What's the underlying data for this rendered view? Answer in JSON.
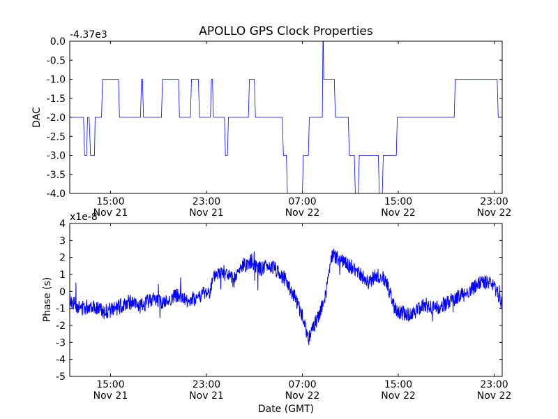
{
  "chart_data": [
    {
      "type": "line",
      "title": "APOLLO GPS Clock Properties",
      "ylabel": "DAC",
      "xlabel": "",
      "offset_label": "-4.37e3",
      "ylim": [
        -4.0,
        0.0
      ],
      "yticks": [
        "0.0",
        "-0.5",
        "-1.0",
        "-1.5",
        "-2.0",
        "-2.5",
        "-3.0",
        "-3.5",
        "-4.0"
      ],
      "xlim": [
        "2008-11-21 11:36",
        "2008-11-22 23:40"
      ],
      "xticks": [
        {
          "time": "2008-11-21 15:00",
          "line1": "15:00",
          "line2": "Nov 21"
        },
        {
          "time": "2008-11-21 23:00",
          "line1": "23:00",
          "line2": "Nov 21"
        },
        {
          "time": "2008-11-22 07:00",
          "line1": "07:00",
          "line2": "Nov 22"
        },
        {
          "time": "2008-11-22 15:00",
          "line1": "15:00",
          "line2": "Nov 22"
        },
        {
          "time": "2008-11-22 23:00",
          "line1": "23:00",
          "line2": "Nov 22"
        }
      ],
      "color": "#0000ff",
      "series": [
        {
          "x": [
            "2008-11-21 11:36",
            "2008-11-21 12:45",
            "2008-11-21 12:50",
            "2008-11-21 13:00",
            "2008-11-21 13:05",
            "2008-11-21 13:13",
            "2008-11-21 13:20",
            "2008-11-21 13:40",
            "2008-11-21 13:43",
            "2008-11-21 14:15",
            "2008-11-21 14:20",
            "2008-11-21 15:40",
            "2008-11-21 15:45",
            "2008-11-21 17:30",
            "2008-11-21 17:35",
            "2008-11-21 17:40",
            "2008-11-21 17:45",
            "2008-11-21 19:15",
            "2008-11-21 19:20",
            "2008-11-21 20:40",
            "2008-11-21 20:45",
            "2008-11-21 21:40",
            "2008-11-21 21:45",
            "2008-11-21 22:20",
            "2008-11-21 22:25",
            "2008-11-21 23:20",
            "2008-11-21 23:25",
            "2008-11-21 23:30",
            "2008-11-21 23:35",
            "2008-11-22 00:30",
            "2008-11-22 00:35",
            "2008-11-22 00:45",
            "2008-11-22 00:50",
            "2008-11-22 02:30",
            "2008-11-22 02:35",
            "2008-11-22 03:00",
            "2008-11-22 03:05",
            "2008-11-22 05:20",
            "2008-11-22 05:25",
            "2008-11-22 05:40",
            "2008-11-22 05:45",
            "2008-11-22 07:00",
            "2008-11-22 07:05",
            "2008-11-22 07:30",
            "2008-11-22 07:35",
            "2008-11-22 08:40",
            "2008-11-22 08:43",
            "2008-11-22 08:45",
            "2008-11-22 08:47",
            "2008-11-22 09:40",
            "2008-11-22 09:45",
            "2008-11-22 10:50",
            "2008-11-22 10:55",
            "2008-11-22 11:20",
            "2008-11-22 11:25",
            "2008-11-22 11:40",
            "2008-11-22 11:45",
            "2008-11-22 13:20",
            "2008-11-22 13:25",
            "2008-11-22 13:40",
            "2008-11-22 13:45",
            "2008-11-22 14:50",
            "2008-11-22 14:55",
            "2008-11-22 19:40",
            "2008-11-22 19:45",
            "2008-11-22 23:15",
            "2008-11-22 23:20",
            "2008-11-22 23:40"
          ],
          "values": [
            -2.0,
            -2.0,
            -3.0,
            -3.0,
            -2.0,
            -2.0,
            -3.0,
            -3.0,
            -2.0,
            -2.0,
            -1.0,
            -1.0,
            -2.0,
            -2.0,
            -1.0,
            -1.0,
            -2.0,
            -2.0,
            -1.0,
            -1.0,
            -2.0,
            -2.0,
            -1.0,
            -1.0,
            -2.0,
            -2.0,
            -1.0,
            -1.0,
            -2.0,
            -2.0,
            -3.0,
            -3.0,
            -2.0,
            -2.0,
            -1.0,
            -1.0,
            -2.0,
            -2.0,
            -3.0,
            -3.0,
            -4.0,
            -4.0,
            -3.0,
            -3.0,
            -2.0,
            -2.0,
            0.0,
            0.0,
            -1.0,
            -1.0,
            -2.0,
            -2.0,
            -3.0,
            -3.0,
            -4.0,
            -4.0,
            -3.0,
            -3.0,
            -4.0,
            -4.0,
            -3.0,
            -3.0,
            -2.0,
            -2.0,
            -1.0,
            -1.0,
            -2.0,
            -2.0
          ]
        }
      ]
    },
    {
      "type": "line",
      "title": "",
      "ylabel": "Phase (s)",
      "xlabel": "Date (GMT)",
      "offset_label": "x1e-8",
      "ylim": [
        -5,
        4
      ],
      "yticks": [
        "4",
        "3",
        "2",
        "1",
        "0",
        "-1",
        "-2",
        "-3",
        "-4",
        "-5"
      ],
      "xlim": [
        "2008-11-21 11:36",
        "2008-11-22 23:40"
      ],
      "xticks": [
        {
          "time": "2008-11-21 15:00",
          "line1": "15:00",
          "line2": "Nov 21"
        },
        {
          "time": "2008-11-21 23:00",
          "line1": "23:00",
          "line2": "Nov 21"
        },
        {
          "time": "2008-11-22 07:00",
          "line1": "07:00",
          "line2": "Nov 22"
        },
        {
          "time": "2008-11-22 15:00",
          "line1": "15:00",
          "line2": "Nov 22"
        },
        {
          "time": "2008-11-22 23:00",
          "line1": "23:00",
          "line2": "Nov 22"
        }
      ],
      "color": "#0000ff",
      "series": [
        {
          "x": [
            "2008-11-21 11:36",
            "2008-11-21 12:30",
            "2008-11-21 13:30",
            "2008-11-21 14:30",
            "2008-11-21 15:30",
            "2008-11-21 16:30",
            "2008-11-21 17:30",
            "2008-11-21 18:30",
            "2008-11-21 19:30",
            "2008-11-21 20:30",
            "2008-11-21 21:30",
            "2008-11-21 22:30",
            "2008-11-21 23:15",
            "2008-11-21 23:45",
            "2008-11-22 00:30",
            "2008-11-22 01:15",
            "2008-11-22 02:00",
            "2008-11-22 02:45",
            "2008-11-22 03:30",
            "2008-11-22 04:15",
            "2008-11-22 05:00",
            "2008-11-22 05:45",
            "2008-11-22 06:30",
            "2008-11-22 07:00",
            "2008-11-22 07:30",
            "2008-11-22 08:00",
            "2008-11-22 08:30",
            "2008-11-22 09:00",
            "2008-11-22 09:30",
            "2008-11-22 10:15",
            "2008-11-22 11:00",
            "2008-11-22 11:45",
            "2008-11-22 12:30",
            "2008-11-22 13:15",
            "2008-11-22 14:00",
            "2008-11-22 14:30",
            "2008-11-22 15:00",
            "2008-11-22 16:00",
            "2008-11-22 17:00",
            "2008-11-22 18:00",
            "2008-11-22 19:00",
            "2008-11-22 20:00",
            "2008-11-22 21:00",
            "2008-11-22 22:00",
            "2008-11-22 22:45",
            "2008-11-22 23:15",
            "2008-11-22 23:40"
          ],
          "values": [
            -0.5,
            -1.0,
            -0.8,
            -1.2,
            -1.0,
            -0.6,
            -0.9,
            -0.4,
            -0.7,
            -0.2,
            -0.6,
            -0.2,
            0.0,
            1.0,
            1.2,
            0.6,
            1.5,
            1.8,
            1.3,
            1.5,
            1.2,
            0.5,
            -0.5,
            -1.5,
            -2.8,
            -2.0,
            -1.2,
            0.0,
            2.2,
            1.8,
            1.5,
            1.0,
            0.5,
            1.0,
            0.6,
            -0.6,
            -1.2,
            -1.4,
            -0.8,
            -1.0,
            -0.7,
            -0.3,
            0.0,
            0.6,
            0.4,
            0.0,
            -0.9
          ]
        }
      ]
    }
  ]
}
